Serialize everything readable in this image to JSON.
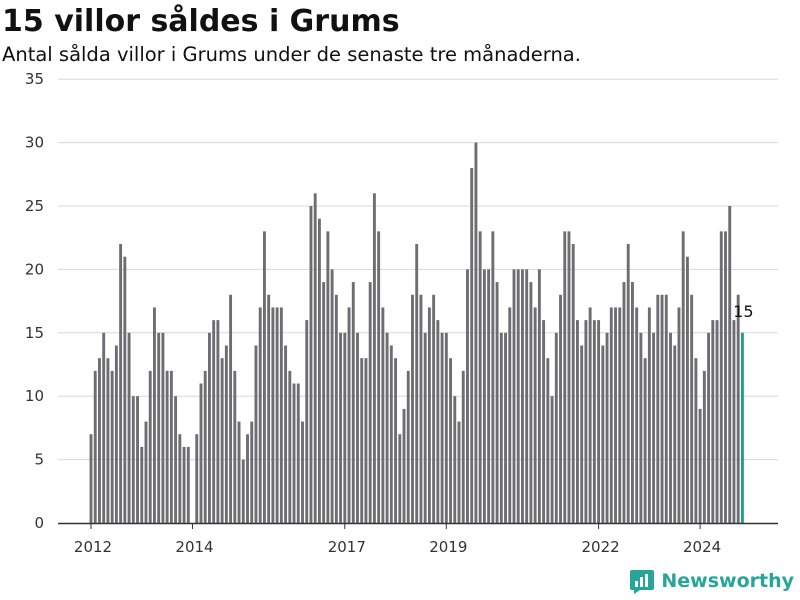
{
  "title": "15 villor såldes i Grums",
  "subtitle": "Antal sålda villor i Grums under de senaste tre månaderna.",
  "brand": "Newsworthy",
  "colors": {
    "bar": "#6e6d72",
    "highlight": "#1f9e8f",
    "grid": "#d8d8d8",
    "axis": "#333333",
    "brand": "#26a69a"
  },
  "chart_data": {
    "type": "bar",
    "title": "15 villor såldes i Grums",
    "subtitle": "Antal sålda villor i Grums under de senaste tre månaderna.",
    "xlabel": "",
    "ylabel": "",
    "ylim": [
      0,
      35
    ],
    "yticks": [
      0,
      5,
      10,
      15,
      20,
      25,
      30,
      35
    ],
    "xticks": [
      "2012",
      "2014",
      "2017",
      "2019",
      "2022",
      "2024"
    ],
    "grid": true,
    "legend": "none",
    "x_start": "2012-01",
    "frequency": "monthly",
    "values": [
      7,
      12,
      13,
      15,
      13,
      12,
      14,
      22,
      21,
      15,
      10,
      10,
      6,
      8,
      12,
      17,
      15,
      15,
      12,
      12,
      10,
      7,
      6,
      6,
      0,
      7,
      11,
      12,
      15,
      16,
      16,
      13,
      14,
      18,
      12,
      8,
      5,
      7,
      8,
      14,
      17,
      23,
      18,
      17,
      17,
      17,
      14,
      12,
      11,
      11,
      8,
      16,
      25,
      26,
      24,
      19,
      23,
      20,
      18,
      15,
      15,
      17,
      19,
      15,
      13,
      13,
      19,
      26,
      23,
      17,
      15,
      14,
      13,
      7,
      9,
      12,
      18,
      22,
      18,
      15,
      17,
      18,
      16,
      15,
      15,
      13,
      10,
      8,
      12,
      20,
      28,
      30,
      23,
      20,
      20,
      23,
      19,
      15,
      15,
      17,
      20,
      20,
      20,
      20,
      19,
      17,
      20,
      16,
      13,
      10,
      15,
      18,
      23,
      23,
      22,
      16,
      14,
      16,
      17,
      16,
      16,
      14,
      15,
      17,
      17,
      17,
      19,
      22,
      19,
      17,
      15,
      13,
      17,
      15,
      18,
      18,
      18,
      15,
      14,
      17,
      23,
      21,
      18,
      13,
      9,
      12,
      15,
      16,
      16,
      23,
      23,
      25,
      16,
      18,
      15
    ],
    "highlight_last": true,
    "data_labels": [
      {
        "index": 154,
        "text": "15"
      }
    ]
  }
}
